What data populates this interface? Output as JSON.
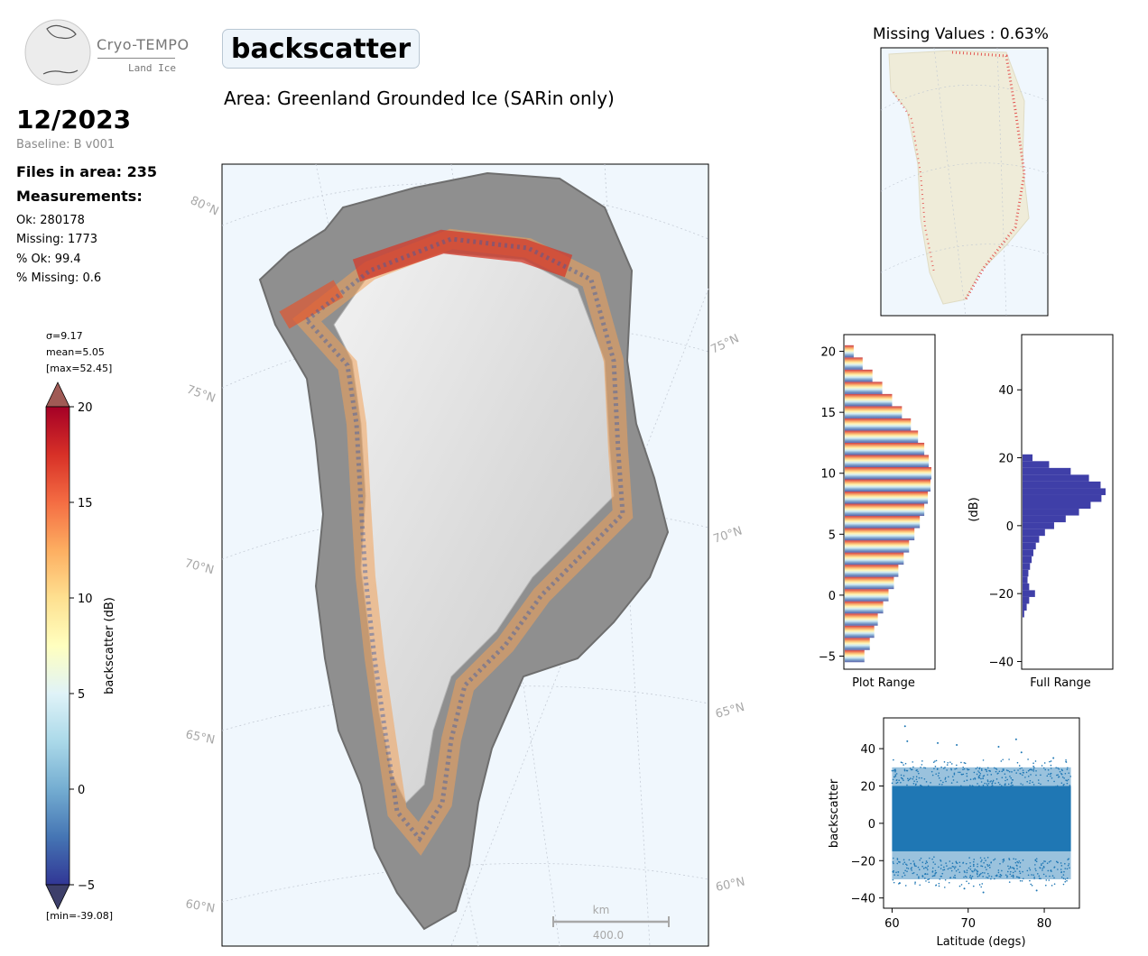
{
  "header": {
    "logo_line1": "Cryo-TEMPO",
    "logo_line2": "Land Ice",
    "parameter": "backscatter",
    "area": "Area: Greenland Grounded Ice (SARin only)"
  },
  "summary": {
    "date": "12/2023",
    "baseline": "Baseline: B v001",
    "files": "Files in area: 235",
    "measurements_heading": "Measurements:",
    "ok": "Ok: 280178",
    "missing": "Missing: 1773",
    "pct_ok": "% Ok: 99.4",
    "pct_missing": "% Missing: 0.6"
  },
  "colorbar": {
    "sigma": "σ=9.17",
    "mean": "mean=5.05",
    "max": "[max=52.45]",
    "min": "[min=-39.08]",
    "label": "backscatter (dB)",
    "ticks": [
      -5,
      0,
      5,
      10,
      15,
      20
    ],
    "range": [
      -5,
      20
    ]
  },
  "map": {
    "lat_labels_left": [
      "80°N",
      "75°N",
      "70°N",
      "65°N",
      "60°N"
    ],
    "lat_labels_right": [
      "75°N",
      "70°N",
      "65°N",
      "60°N"
    ],
    "scale_unit": "km",
    "scale_value": "400.0",
    "colors": {
      "ocean": "#eef6fc",
      "missing_points": "#e03030",
      "land": "#efecd9"
    }
  },
  "missing_map": {
    "title": "Missing Values : 0.63%"
  },
  "chart_data": [
    {
      "type": "bar",
      "orientation": "horizontal",
      "name": "plot-range-histogram",
      "xlabel": "Plot Range",
      "ylabel": "",
      "ylim": [
        -6,
        21.3
      ],
      "yticks": [
        -5,
        0,
        5,
        10,
        15,
        20
      ],
      "bins_dB": [
        -5,
        -4,
        -3,
        -2,
        -1,
        0,
        1,
        2,
        3,
        4,
        5,
        6,
        7,
        8,
        9,
        10,
        11,
        12,
        13,
        14,
        15,
        16,
        17,
        18,
        19,
        20
      ],
      "relative_counts": [
        0.22,
        0.28,
        0.33,
        0.37,
        0.43,
        0.49,
        0.55,
        0.6,
        0.66,
        0.72,
        0.78,
        0.84,
        0.89,
        0.93,
        0.96,
        0.97,
        0.94,
        0.89,
        0.82,
        0.74,
        0.64,
        0.53,
        0.42,
        0.31,
        0.2,
        0.1
      ]
    },
    {
      "type": "bar",
      "orientation": "horizontal",
      "name": "full-range-histogram",
      "xlabel": "Full Range",
      "ylabel": "(dB)",
      "ylim": [
        -42,
        56
      ],
      "yticks": [
        -40,
        -20,
        0,
        20,
        40
      ],
      "color": "#3f3fa8",
      "bins_dB": [
        -26,
        -24,
        -22,
        -20,
        -18,
        -16,
        -14,
        -12,
        -10,
        -8,
        -6,
        -4,
        -2,
        0,
        2,
        4,
        6,
        8,
        10,
        12,
        14,
        16,
        18,
        20
      ],
      "relative_counts": [
        0.02,
        0.05,
        0.08,
        0.15,
        0.08,
        0.06,
        0.07,
        0.09,
        0.11,
        0.13,
        0.16,
        0.2,
        0.27,
        0.38,
        0.52,
        0.68,
        0.82,
        0.95,
        1.0,
        0.94,
        0.8,
        0.58,
        0.32,
        0.12
      ]
    },
    {
      "type": "scatter",
      "name": "backscatter-vs-latitude",
      "xlabel": "Latitude (degs)",
      "ylabel": "backscatter",
      "xlim": [
        59,
        84.5
      ],
      "ylim": [
        -45,
        56
      ],
      "xticks": [
        60,
        70,
        80
      ],
      "yticks": [
        -40,
        -20,
        0,
        20,
        40
      ],
      "color": "#1f77b4",
      "band": {
        "x": [
          60,
          83.5
        ],
        "y_core": [
          -15,
          20
        ],
        "y_outer": [
          -30,
          30
        ]
      },
      "outliers": [
        [
          61.7,
          52
        ],
        [
          62,
          44
        ],
        [
          66,
          43
        ],
        [
          68.5,
          42
        ],
        [
          74,
          41
        ],
        [
          76.3,
          45
        ],
        [
          77,
          38
        ],
        [
          81.2,
          35
        ],
        [
          61,
          -32
        ],
        [
          69.5,
          -35
        ],
        [
          72,
          -37
        ],
        [
          79,
          -36
        ]
      ]
    }
  ]
}
